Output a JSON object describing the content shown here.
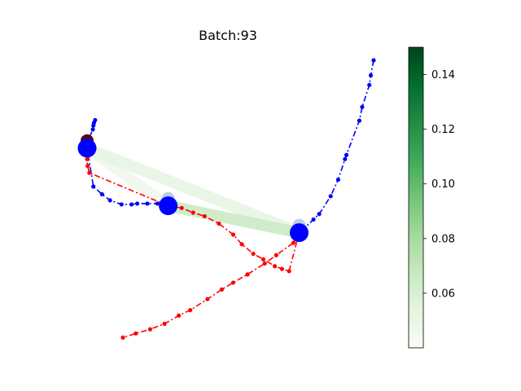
{
  "chart_data": {
    "type": "scatter",
    "title": "Batch:93",
    "axes_visible": false,
    "xlim": [
      0,
      1
    ],
    "ylim": [
      0,
      1
    ],
    "series": [
      {
        "color": "#0000ff",
        "linestyle": "dashdot",
        "marker": "dot",
        "points": [
          [
            0.028,
            0.782
          ],
          [
            0.024,
            0.772
          ],
          [
            0.022,
            0.762
          ],
          [
            0.02,
            0.748
          ],
          [
            0.0,
            0.7
          ],
          [
            0.0,
            0.68
          ],
          [
            0.022,
            0.54
          ],
          [
            0.052,
            0.512
          ],
          [
            0.08,
            0.49
          ],
          [
            0.12,
            0.475
          ],
          [
            0.155,
            0.475
          ],
          [
            0.175,
            0.478
          ],
          [
            0.21,
            0.478
          ],
          [
            0.245,
            0.478
          ],
          [
            0.283,
            0.47
          ],
          [
            0.283,
            0.47
          ]
        ]
      },
      {
        "color": "#0000ff",
        "linestyle": "dashdot",
        "marker": "dot",
        "points": [
          [
            1.0,
            1.0
          ],
          [
            0.99,
            0.945
          ],
          [
            0.985,
            0.91
          ],
          [
            0.96,
            0.83
          ],
          [
            0.95,
            0.78
          ],
          [
            0.905,
            0.655
          ],
          [
            0.9,
            0.64
          ],
          [
            0.876,
            0.565
          ],
          [
            0.85,
            0.505
          ],
          [
            0.81,
            0.44
          ],
          [
            0.79,
            0.42
          ],
          [
            0.758,
            0.388
          ],
          [
            0.74,
            0.372
          ]
        ]
      },
      {
        "color": "#ff0000",
        "linestyle": "dashdot",
        "marker": "dot",
        "points": [
          [
            0.01,
            0.7
          ],
          [
            0.0,
            0.67
          ],
          [
            0.0,
            0.64
          ],
          [
            0.002,
            0.615
          ],
          [
            0.008,
            0.59
          ],
          [
            0.283,
            0.47
          ],
          [
            0.33,
            0.462
          ],
          [
            0.37,
            0.445
          ],
          [
            0.41,
            0.432
          ],
          [
            0.46,
            0.405
          ],
          [
            0.51,
            0.365
          ],
          [
            0.54,
            0.33
          ],
          [
            0.58,
            0.295
          ],
          [
            0.615,
            0.275
          ],
          [
            0.655,
            0.25
          ],
          [
            0.68,
            0.24
          ],
          [
            0.705,
            0.232
          ],
          [
            0.74,
            0.372
          ]
        ]
      },
      {
        "color": "#ff0000",
        "linestyle": "dashdot",
        "marker": "dot",
        "points": [
          [
            0.74,
            0.372
          ],
          [
            0.72,
            0.335
          ],
          [
            0.66,
            0.29
          ],
          [
            0.62,
            0.26
          ],
          [
            0.56,
            0.22
          ],
          [
            0.51,
            0.19
          ],
          [
            0.47,
            0.165
          ],
          [
            0.42,
            0.13
          ],
          [
            0.36,
            0.09
          ],
          [
            0.32,
            0.07
          ],
          [
            0.27,
            0.04
          ],
          [
            0.22,
            0.02
          ],
          [
            0.17,
            0.005
          ],
          [
            0.125,
            -0.01
          ]
        ]
      }
    ],
    "agents": [
      {
        "x": 0.0,
        "y": 0.68,
        "color": "#0000ff"
      },
      {
        "x": 0.283,
        "y": 0.47,
        "color": "#0000ff"
      },
      {
        "x": 0.74,
        "y": 0.372,
        "color": "#0000ff"
      }
    ],
    "edges": [
      {
        "from": 0,
        "to": 1,
        "weight": 0.045
      },
      {
        "from": 0,
        "to": 2,
        "weight": 0.052
      },
      {
        "from": 1,
        "to": 2,
        "weight": 0.065
      }
    ],
    "node_highlights": [
      {
        "node": 0,
        "weight": 0.15
      },
      {
        "node": 1,
        "weight": 0.07
      },
      {
        "node": 2,
        "weight": 0.065
      }
    ],
    "colorbar": {
      "colormap": "Greens",
      "min": 0.04,
      "max": 0.15,
      "ticks": [
        "0.06",
        "0.08",
        "0.10",
        "0.12",
        "0.14"
      ]
    }
  }
}
